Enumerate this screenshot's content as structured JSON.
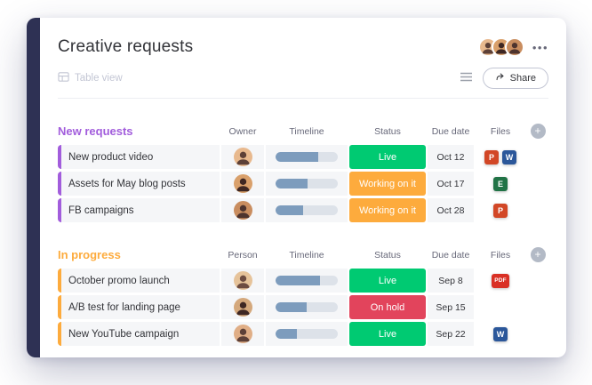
{
  "app": {
    "title": "Creative requests",
    "view_tab": "Table view",
    "share_label": "Share"
  },
  "icons": {
    "more": "•••",
    "plus": "+"
  },
  "groups": [
    {
      "name": "New requests",
      "color": "#a25ddc",
      "columns": {
        "person": "Owner",
        "timeline": "Timeline",
        "status": "Status",
        "due": "Due date",
        "files": "Files"
      },
      "rows": [
        {
          "task": "New product video",
          "timeline": 0.68,
          "status": {
            "label": "Live",
            "color": "#00ca72"
          },
          "due": "Oct 12",
          "files": [
            {
              "label": "P",
              "color": "#d24726"
            },
            {
              "label": "W",
              "color": "#2b579a"
            }
          ]
        },
        {
          "task": "Assets for May blog posts",
          "timeline": 0.52,
          "status": {
            "label": "Working on it",
            "color": "#fdab3d"
          },
          "due": "Oct 17",
          "files": [
            {
              "label": "E",
              "color": "#217346"
            }
          ]
        },
        {
          "task": "FB campaigns",
          "timeline": 0.44,
          "status": {
            "label": "Working on it",
            "color": "#fdab3d"
          },
          "due": "Oct 28",
          "files": [
            {
              "label": "P",
              "color": "#d24726"
            }
          ]
        }
      ]
    },
    {
      "name": "In progress",
      "color": "#fdab3d",
      "columns": {
        "person": "Person",
        "timeline": "Timeline",
        "status": "Status",
        "due": "Due date",
        "files": "Files"
      },
      "rows": [
        {
          "task": "October promo launch",
          "timeline": 0.72,
          "status": {
            "label": "Live",
            "color": "#00ca72"
          },
          "due": "Sep 8",
          "files": [
            {
              "label": "PDF",
              "color": "#d93025"
            }
          ]
        },
        {
          "task": "A/B test for landing page",
          "timeline": 0.5,
          "status": {
            "label": "On hold",
            "color": "#e2445c"
          },
          "due": "Sep 15",
          "files": []
        },
        {
          "task": "New YouTube campaign",
          "timeline": 0.34,
          "status": {
            "label": "Live",
            "color": "#00ca72"
          },
          "due": "Sep 22",
          "files": [
            {
              "label": "W",
              "color": "#2b579a"
            }
          ]
        }
      ]
    }
  ]
}
